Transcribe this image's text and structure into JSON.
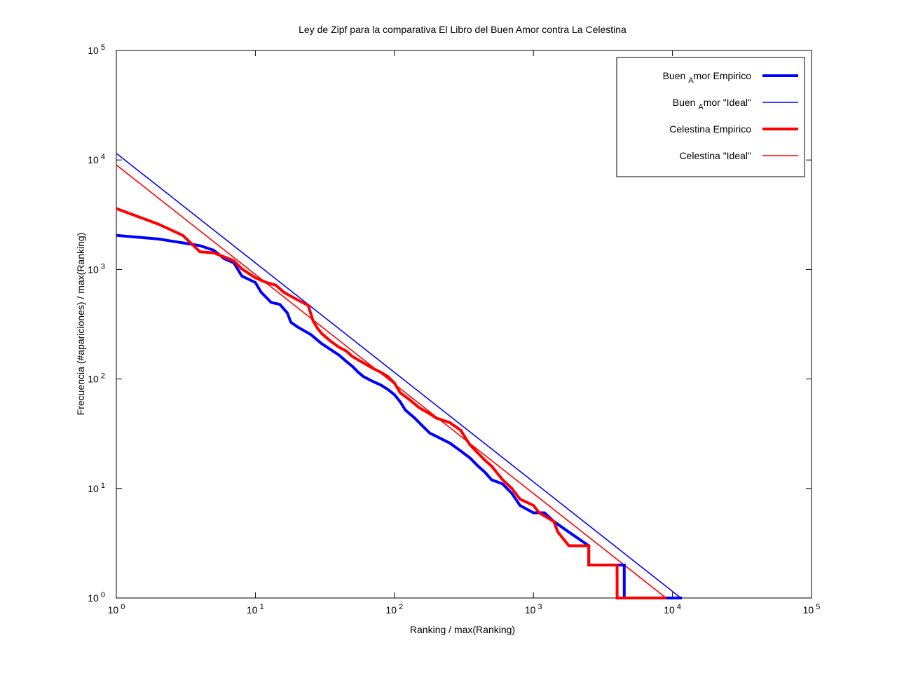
{
  "chart_data": {
    "type": "line",
    "title": "Ley de Zipf para la comparativa El Libro del Buen Amor contra La Celestina",
    "xlabel": "Ranking / max(Ranking)",
    "ylabel": "Frecuencia (#apariciones) / max(Ranking)",
    "xscale": "log",
    "yscale": "log",
    "xlim": [
      1,
      100000
    ],
    "ylim": [
      1,
      100000
    ],
    "x_ticks": [
      {
        "value": 1,
        "base": "10",
        "exp": "0"
      },
      {
        "value": 10,
        "base": "10",
        "exp": "1"
      },
      {
        "value": 100,
        "base": "10",
        "exp": "2"
      },
      {
        "value": 1000,
        "base": "10",
        "exp": "3"
      },
      {
        "value": 10000,
        "base": "10",
        "exp": "4"
      },
      {
        "value": 100000,
        "base": "10",
        "exp": "5"
      }
    ],
    "y_ticks": [
      {
        "value": 1,
        "base": "10",
        "exp": "0"
      },
      {
        "value": 10,
        "base": "10",
        "exp": "1"
      },
      {
        "value": 100,
        "base": "10",
        "exp": "2"
      },
      {
        "value": 1000,
        "base": "10",
        "exp": "3"
      },
      {
        "value": 10000,
        "base": "10",
        "exp": "4"
      },
      {
        "value": 100000,
        "base": "10",
        "exp": "5"
      }
    ],
    "grid": false,
    "legend_position": "top-right",
    "series": [
      {
        "name_parts": [
          "Buen ",
          "A",
          "mor Empirico"
        ],
        "color": "#0000ff",
        "width": "thick",
        "points": [
          [
            1,
            2050
          ],
          [
            2,
            1900
          ],
          [
            3,
            1750
          ],
          [
            4,
            1650
          ],
          [
            5,
            1500
          ],
          [
            6,
            1250
          ],
          [
            7,
            1150
          ],
          [
            8,
            870
          ],
          [
            10,
            760
          ],
          [
            11,
            620
          ],
          [
            13,
            500
          ],
          [
            15,
            480
          ],
          [
            17,
            400
          ],
          [
            18,
            330
          ],
          [
            20,
            300
          ],
          [
            25,
            255
          ],
          [
            30,
            210
          ],
          [
            35,
            185
          ],
          [
            40,
            165
          ],
          [
            45,
            145
          ],
          [
            50,
            130
          ],
          [
            55,
            115
          ],
          [
            60,
            105
          ],
          [
            70,
            95
          ],
          [
            80,
            88
          ],
          [
            90,
            80
          ],
          [
            100,
            72
          ],
          [
            110,
            62
          ],
          [
            120,
            52
          ],
          [
            140,
            44
          ],
          [
            160,
            37
          ],
          [
            180,
            32
          ],
          [
            200,
            30
          ],
          [
            250,
            26
          ],
          [
            300,
            22
          ],
          [
            350,
            19
          ],
          [
            400,
            16
          ],
          [
            450,
            14
          ],
          [
            500,
            12
          ],
          [
            600,
            11
          ],
          [
            700,
            9
          ],
          [
            800,
            7
          ],
          [
            1000,
            6
          ],
          [
            1200,
            6
          ],
          [
            1400,
            5
          ],
          [
            1800,
            4
          ],
          [
            2500,
            3
          ],
          [
            2500,
            2
          ],
          [
            4500,
            2
          ],
          [
            4500,
            1
          ],
          [
            11700,
            1
          ]
        ]
      },
      {
        "name_parts": [
          "Buen ",
          "A",
          "mor \"Ideal\""
        ],
        "color": "#0000ff",
        "width": "thin",
        "points": [
          [
            1,
            11500
          ],
          [
            11500,
            1
          ]
        ]
      },
      {
        "name_parts": [
          "Celestina Empirico"
        ],
        "color": "#ff0000",
        "width": "thick",
        "points": [
          [
            1,
            3600
          ],
          [
            2,
            2600
          ],
          [
            3,
            2050
          ],
          [
            4,
            1450
          ],
          [
            5,
            1420
          ],
          [
            6,
            1300
          ],
          [
            7,
            1200
          ],
          [
            8,
            1010
          ],
          [
            10,
            840
          ],
          [
            12,
            760
          ],
          [
            14,
            720
          ],
          [
            16,
            620
          ],
          [
            18,
            570
          ],
          [
            20,
            530
          ],
          [
            24,
            470
          ],
          [
            26,
            340
          ],
          [
            28,
            290
          ],
          [
            30,
            260
          ],
          [
            35,
            220
          ],
          [
            40,
            195
          ],
          [
            45,
            180
          ],
          [
            50,
            160
          ],
          [
            60,
            140
          ],
          [
            70,
            125
          ],
          [
            80,
            115
          ],
          [
            90,
            105
          ],
          [
            100,
            92
          ],
          [
            110,
            75
          ],
          [
            130,
            64
          ],
          [
            150,
            55
          ],
          [
            180,
            48
          ],
          [
            200,
            44
          ],
          [
            250,
            40
          ],
          [
            300,
            34
          ],
          [
            330,
            28
          ],
          [
            350,
            25
          ],
          [
            400,
            21
          ],
          [
            450,
            18
          ],
          [
            500,
            16
          ],
          [
            600,
            12
          ],
          [
            700,
            10
          ],
          [
            800,
            8
          ],
          [
            1000,
            7
          ],
          [
            1100,
            6
          ],
          [
            1400,
            5
          ],
          [
            1500,
            4
          ],
          [
            1800,
            3
          ],
          [
            2500,
            3
          ],
          [
            2500,
            2
          ],
          [
            4000,
            2
          ],
          [
            4000,
            1
          ],
          [
            9000,
            1
          ]
        ]
      },
      {
        "name_parts": [
          "Celestina \"Ideal\""
        ],
        "color": "#ff0000",
        "width": "thin",
        "points": [
          [
            1,
            9000
          ],
          [
            9000,
            1
          ]
        ]
      }
    ]
  }
}
